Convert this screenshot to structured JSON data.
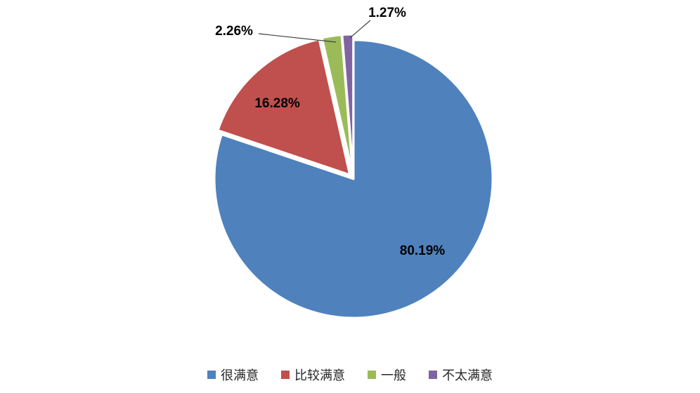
{
  "chart_data": {
    "type": "pie",
    "title": "",
    "categories": [
      "很满意",
      "比较满意",
      "一般",
      "不太满意"
    ],
    "values": [
      80.19,
      16.28,
      2.26,
      1.27
    ],
    "labels": [
      "80.19%",
      "16.28%",
      "2.26%",
      "1.27%"
    ],
    "colors": [
      "#4F81BD",
      "#C0504D",
      "#9BBB59",
      "#8064A2"
    ],
    "start_angle_deg": 0,
    "direction": "clockwise",
    "legend_position": "bottom",
    "background": "#FFFFFF",
    "slice_border_color": "#FFFFFF"
  }
}
